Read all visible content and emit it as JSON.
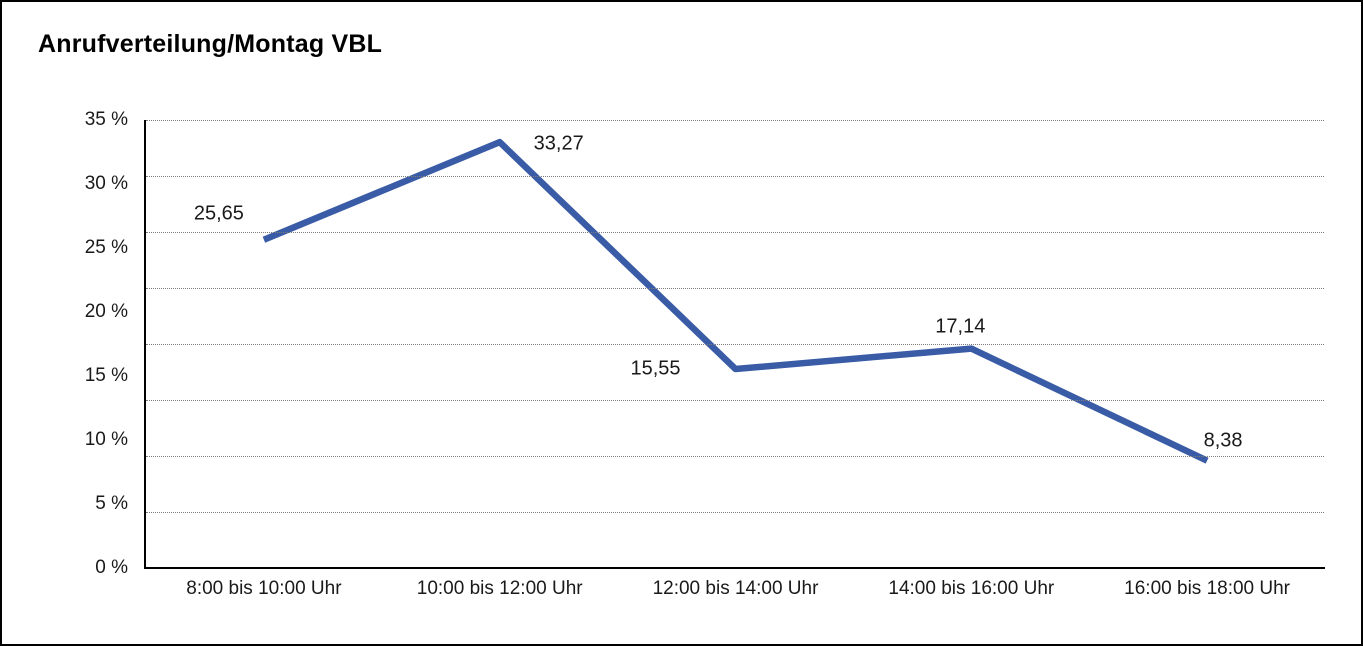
{
  "chart_data": {
    "type": "line",
    "title": "Anrufverteilung/Montag VBL",
    "categories": [
      "8:00 bis 10:00 Uhr",
      "10:00 bis 12:00 Uhr",
      "12:00 bis 14:00 Uhr",
      "14:00 bis 16:00 Uhr",
      "16:00 bis 18:00 Uhr"
    ],
    "values": [
      25.65,
      33.27,
      15.55,
      17.14,
      8.38
    ],
    "value_labels": [
      "25,65",
      "33,27",
      "15,55",
      "17,14",
      "8,38"
    ],
    "y_tick_labels": [
      "35 %",
      "30 %",
      "25 %",
      "20 %",
      "15 %",
      "10 %",
      "5 %",
      "0 %"
    ],
    "y_axis": {
      "min": 0,
      "max": 35,
      "step": 5,
      "unit": "%"
    },
    "xlabel": "",
    "ylabel": "",
    "legend": "none",
    "grid": "horizontal-dotted",
    "grid_row_count": 8,
    "line_color": "#3A5CA6",
    "axis_color": "#000000",
    "text_color": "#1a1a1a"
  }
}
